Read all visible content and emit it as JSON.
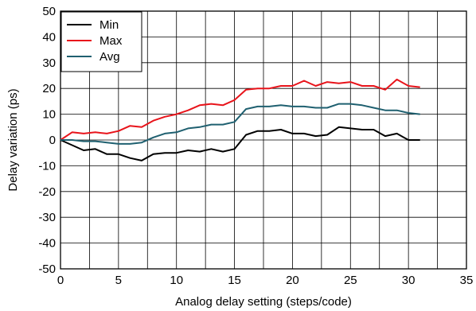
{
  "chart_data": {
    "type": "line",
    "xlabel": "Analog delay setting (steps/code)",
    "ylabel": "Delay variation (ps)",
    "xlim": [
      0,
      35
    ],
    "ylim": [
      -50,
      50
    ],
    "x_ticks": [
      "0",
      "5",
      "10",
      "15",
      "20",
      "25",
      "30",
      "35"
    ],
    "y_ticks": [
      "50",
      "40",
      "30",
      "20",
      "10",
      "0",
      "-10",
      "-20",
      "-30",
      "-40",
      "-50"
    ],
    "grid": true,
    "legend_position": "top-left",
    "x": [
      0,
      1,
      2,
      3,
      4,
      5,
      6,
      7,
      8,
      9,
      10,
      11,
      12,
      13,
      14,
      15,
      16,
      17,
      18,
      19,
      20,
      21,
      22,
      23,
      24,
      25,
      26,
      27,
      28,
      29,
      30,
      31
    ],
    "series": [
      {
        "name": "Min",
        "color": "#000000",
        "values": [
          0,
          -2,
          -4,
          -3.5,
          -5.5,
          -5.5,
          -7,
          -8,
          -5.5,
          -5,
          -5,
          -4,
          -4.5,
          -3.5,
          -4.5,
          -3.5,
          2,
          3.5,
          3.5,
          4,
          2.5,
          2.5,
          1.5,
          2,
          5,
          4.5,
          4,
          4,
          1.5,
          2.5,
          0,
          0
        ]
      },
      {
        "name": "Max",
        "color": "#e8141b",
        "values": [
          0,
          3,
          2.5,
          3,
          2.5,
          3.5,
          5.5,
          5,
          7.5,
          9,
          10,
          11.5,
          13.5,
          14,
          13.5,
          15.5,
          19.5,
          20,
          20,
          21,
          21,
          23,
          21,
          22.5,
          22,
          22.5,
          21,
          21,
          19.5,
          23.5,
          21,
          20.5
        ]
      },
      {
        "name": "Avg",
        "color": "#1f6070",
        "values": [
          0,
          0,
          -0.5,
          -0.5,
          -1,
          -1.5,
          -1.5,
          -1,
          1,
          2.5,
          3,
          4.5,
          5,
          6,
          6,
          7,
          12,
          13,
          13,
          13.5,
          13,
          13,
          12.5,
          12.5,
          14,
          14,
          13.5,
          12.5,
          11.5,
          11.5,
          10.5,
          10
        ]
      }
    ]
  }
}
